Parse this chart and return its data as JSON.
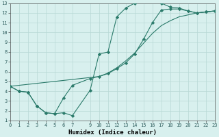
{
  "line1_x": [
    0,
    1,
    2,
    3,
    4,
    5,
    6,
    7,
    9,
    10,
    11,
    12,
    13,
    14,
    15,
    16,
    17,
    18,
    19,
    20,
    21,
    22,
    23
  ],
  "line1_y": [
    4.5,
    4.0,
    3.9,
    2.5,
    1.8,
    1.7,
    1.8,
    1.5,
    4.1,
    7.8,
    8.0,
    11.6,
    12.5,
    13.0,
    13.3,
    13.3,
    13.0,
    12.6,
    12.5,
    12.2,
    12.0,
    12.1,
    12.2
  ],
  "line2_x": [
    0,
    1,
    2,
    3,
    4,
    5,
    6,
    7,
    9,
    10,
    11,
    12,
    13,
    14,
    15,
    16,
    17,
    18,
    19,
    20,
    21,
    22,
    23
  ],
  "line2_y": [
    4.5,
    4.0,
    3.9,
    2.5,
    1.8,
    1.7,
    3.3,
    4.6,
    5.3,
    5.5,
    5.8,
    6.3,
    6.9,
    7.8,
    9.3,
    11.0,
    12.3,
    12.4,
    12.4,
    12.2,
    12.0,
    12.1,
    12.2
  ],
  "line3_x": [
    0,
    10,
    11,
    12,
    13,
    14,
    15,
    16,
    17,
    18,
    19,
    20,
    21,
    22,
    23
  ],
  "line3_y": [
    4.5,
    5.5,
    5.85,
    6.4,
    7.1,
    7.9,
    8.9,
    9.9,
    10.7,
    11.2,
    11.6,
    11.8,
    12.0,
    12.1,
    12.2
  ],
  "line_color": "#2a7a6a",
  "bg_color": "#d8f0ee",
  "grid_color": "#b8d8d5",
  "xlabel": "Humidex (Indice chaleur)",
  "xlim": [
    0,
    23
  ],
  "ylim": [
    1,
    13
  ],
  "xtick_vals": [
    0,
    1,
    2,
    3,
    4,
    5,
    6,
    7,
    9,
    10,
    11,
    12,
    13,
    14,
    15,
    16,
    17,
    18,
    19,
    20,
    21,
    22,
    23
  ],
  "xtick_labels": [
    "0",
    "1",
    "2",
    "3",
    "4",
    "5",
    "6",
    "7",
    "9",
    "10",
    "11",
    "12",
    "13",
    "14",
    "15",
    "16",
    "17",
    "18",
    "19",
    "20",
    "21",
    "22",
    "23"
  ],
  "ytick_vals": [
    1,
    2,
    3,
    4,
    5,
    6,
    7,
    8,
    9,
    10,
    11,
    12,
    13
  ],
  "ytick_labels": [
    "1",
    "2",
    "3",
    "4",
    "5",
    "6",
    "7",
    "8",
    "9",
    "10",
    "11",
    "12",
    "13"
  ],
  "marker": "D",
  "markersize": 2.2,
  "linewidth": 0.8,
  "tick_fontsize": 5,
  "xlabel_fontsize": 6.5
}
